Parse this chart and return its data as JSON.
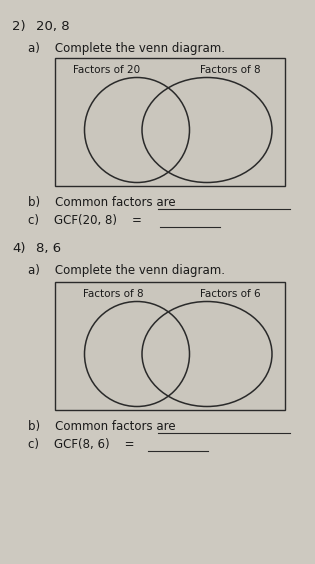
{
  "bg_color": "#cdc9c0",
  "box_face_color": "#cac6bd",
  "text_color": "#1a1a1a",
  "ellipse_color": "#2a2a2a",
  "line_color": "#2a2a2a",
  "problem1_num": "2)",
  "problem1_pair": "20, 8",
  "problem1_label_a": "a)    Complete the venn diagram.",
  "problem1_left_label": "Factors of 20",
  "problem1_right_label": "Factors of 8",
  "problem1_label_b": "b)    Common factors are",
  "problem1_label_c": "c)    GCF(20, 8)    =",
  "problem2_num": "4)",
  "problem2_pair": "8, 6",
  "problem2_label_a": "a)    Complete the venn diagram.",
  "problem2_left_label": "Factors of 8",
  "problem2_right_label": "Factors of 6",
  "problem2_label_b": "b)    Common factors are",
  "problem2_label_c": "c)    GCF(8, 6)    =",
  "font_size_main": 8.5,
  "font_size_label": 7.5,
  "font_size_pair": 9.5
}
